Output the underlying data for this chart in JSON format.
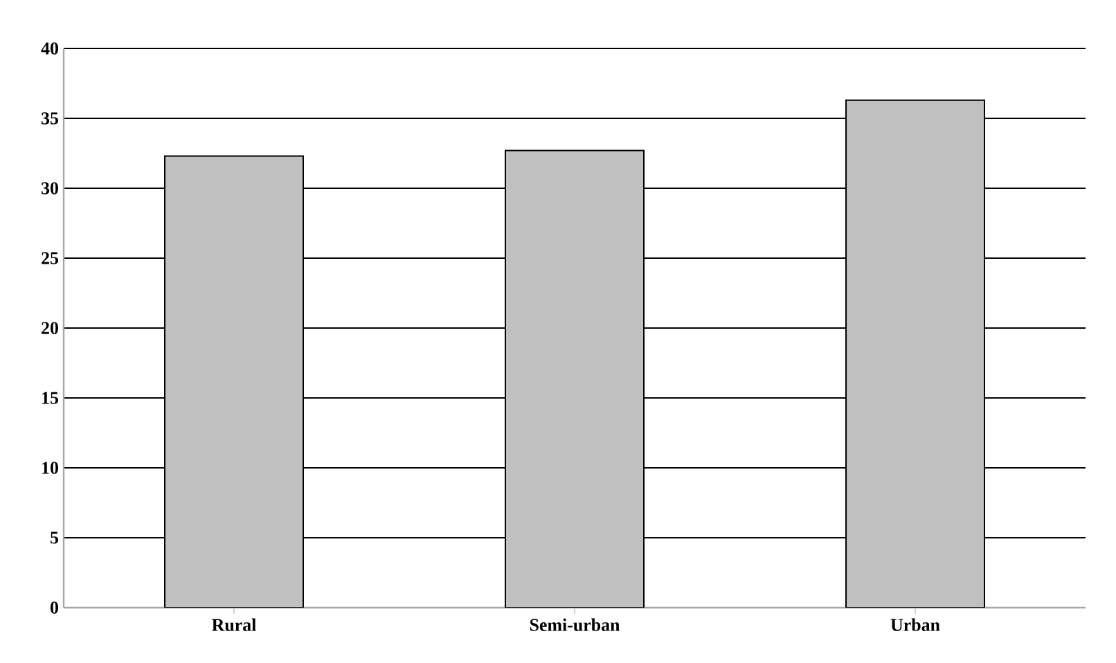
{
  "chart_data": {
    "type": "bar",
    "categories": [
      "Rural",
      "Semi-urban",
      "Urban"
    ],
    "values": [
      32.3,
      32.7,
      36.3
    ],
    "color": "#c0c0c0",
    "ylim": [
      0,
      40
    ],
    "yticks": [
      0,
      5,
      10,
      15,
      20,
      25,
      30,
      35,
      40
    ],
    "grid": "y"
  }
}
